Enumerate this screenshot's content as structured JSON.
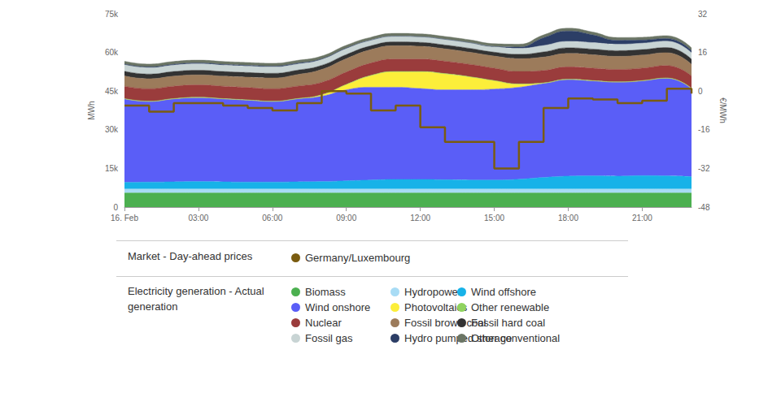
{
  "chart_data": {
    "type": "area",
    "stacked": true,
    "grid": false,
    "legend": "bottom",
    "ylabel": "MWh",
    "y2label": "€/MWh",
    "annotations": [
      "Market - Day-ahead prices",
      "Electricity generation - Actual generation"
    ],
    "categories": [
      "16. Feb",
      null,
      null,
      "03:00",
      null,
      null,
      "06:00",
      null,
      null,
      "09:00",
      null,
      null,
      "12:00",
      null,
      null,
      "15:00",
      null,
      null,
      "18:00",
      null,
      null,
      "21:00",
      null,
      null
    ],
    "ylim": [
      0,
      75000
    ],
    "yticks": [
      0,
      {
        "value": 15000,
        "label": "15k"
      },
      {
        "value": 30000,
        "label": "30k"
      },
      {
        "value": 45000,
        "label": "45k"
      },
      {
        "value": 60000,
        "label": "60k"
      },
      {
        "value": 75000,
        "label": "75k"
      }
    ],
    "y2lim": [
      -48,
      32
    ],
    "y2ticks": [
      -48,
      -32,
      -16,
      0,
      16,
      32
    ],
    "series": [
      {
        "name": "Germany/Luxembourg",
        "type": "line",
        "line_style": "step",
        "axis": "y2",
        "color": "#7a5c10",
        "values": [
          -6,
          -8.5,
          -5,
          -5,
          -6,
          -7,
          -8,
          -5,
          0,
          -1,
          -8,
          -6,
          -15,
          -21,
          -21,
          -32,
          -21,
          -7,
          -3,
          -3.5,
          -5,
          -4,
          1,
          -1
        ]
      },
      {
        "name": "Biomass",
        "type": "area",
        "color": "#4cb050",
        "values": [
          5500,
          5500,
          5500,
          5500,
          5500,
          5500,
          5500,
          5500,
          5500,
          5500,
          5500,
          5500,
          5500,
          5500,
          5500,
          5500,
          5500,
          5500,
          5500,
          5500,
          5500,
          5500,
          5500,
          5500
        ]
      },
      {
        "name": "Hydropower",
        "type": "area",
        "color": "#a8dcf5",
        "values": [
          1500,
          1500,
          1500,
          1500,
          1500,
          1500,
          1500,
          1500,
          1500,
          1500,
          1500,
          1500,
          1500,
          1500,
          1500,
          1500,
          1500,
          1500,
          1500,
          1500,
          1500,
          1500,
          1500,
          1500
        ]
      },
      {
        "name": "Wind offshore",
        "type": "area",
        "color": "#17b2e8",
        "values": [
          2600,
          2700,
          2800,
          2900,
          2800,
          2700,
          2700,
          2800,
          2900,
          3200,
          3500,
          3700,
          3700,
          3600,
          3500,
          3500,
          3800,
          4500,
          5000,
          5100,
          5000,
          5200,
          5100,
          4800
        ]
      },
      {
        "name": "Wind onshore",
        "type": "area",
        "color": "#5a5ef7",
        "values": [
          32400,
          31300,
          32200,
          32600,
          32200,
          31800,
          31300,
          32200,
          33100,
          35300,
          36000,
          35800,
          35300,
          34900,
          35000,
          35300,
          35700,
          36500,
          37500,
          36900,
          36500,
          36800,
          37900,
          34200
        ]
      },
      {
        "name": "Photovoltaics",
        "type": "area",
        "color": "#fcee3a",
        "values": [
          0,
          0,
          0,
          0,
          0,
          0,
          0,
          0,
          500,
          2000,
          4500,
          6000,
          6500,
          6200,
          5000,
          3200,
          1200,
          100,
          0,
          0,
          0,
          0,
          0,
          0
        ]
      },
      {
        "name": "Other renewable",
        "type": "area",
        "color": "#8fd35f",
        "values": [
          100,
          100,
          100,
          100,
          100,
          100,
          100,
          100,
          100,
          100,
          100,
          100,
          100,
          100,
          100,
          100,
          100,
          100,
          100,
          100,
          100,
          100,
          100,
          100
        ]
      },
      {
        "name": "Nuclear",
        "type": "area",
        "color": "#9a3c3c",
        "values": [
          4800,
          4800,
          4800,
          4800,
          4800,
          4800,
          4800,
          4800,
          4800,
          4800,
          4800,
          4800,
          4800,
          4800,
          4800,
          4800,
          4800,
          4800,
          4800,
          4800,
          4800,
          4800,
          4800,
          4800
        ]
      },
      {
        "name": "Fossil brown coal",
        "type": "area",
        "color": "#9c7b5b",
        "values": [
          4000,
          3900,
          3900,
          3900,
          3900,
          4000,
          4200,
          4500,
          5000,
          5200,
          5200,
          5200,
          5000,
          4800,
          4700,
          4700,
          5000,
          5200,
          5200,
          5200,
          5100,
          5100,
          5000,
          4500
        ]
      },
      {
        "name": "Fossil hard coal",
        "type": "area",
        "color": "#333333",
        "values": [
          1800,
          1800,
          1800,
          1800,
          1800,
          1800,
          1800,
          1700,
          1600,
          1600,
          1500,
          1500,
          1500,
          1500,
          1500,
          1500,
          1700,
          2000,
          2200,
          2200,
          2200,
          2100,
          2000,
          2000
        ]
      },
      {
        "name": "Fossil gas",
        "type": "area",
        "color": "#c8d4d4",
        "values": [
          2500,
          2500,
          2500,
          2500,
          2500,
          2500,
          2500,
          2400,
          2300,
          2300,
          2200,
          2200,
          2200,
          2200,
          2200,
          2200,
          2300,
          2500,
          2500,
          2500,
          2500,
          2500,
          2500,
          2500
        ]
      },
      {
        "name": "Hydro pumped storage",
        "type": "area",
        "color": "#2c3e66",
        "values": [
          300,
          300,
          300,
          300,
          300,
          300,
          300,
          300,
          200,
          200,
          0,
          0,
          0,
          0,
          0,
          0,
          500,
          3000,
          4000,
          3000,
          1500,
          1200,
          1000,
          800
        ]
      },
      {
        "name": "Other conventional",
        "type": "area",
        "color": "#6b7565",
        "values": [
          1100,
          1100,
          1100,
          1100,
          1100,
          1100,
          1100,
          1100,
          1100,
          1100,
          1100,
          1100,
          1100,
          1100,
          1100,
          1100,
          1100,
          1100,
          1100,
          1100,
          1100,
          1100,
          1100,
          1100
        ]
      }
    ]
  }
}
